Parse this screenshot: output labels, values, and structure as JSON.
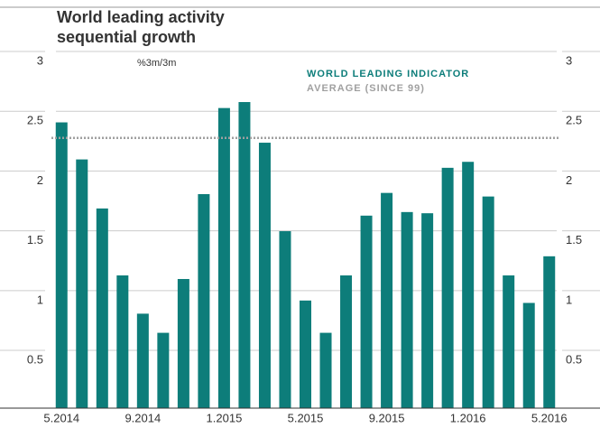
{
  "chart_data": {
    "type": "bar",
    "title_lines": [
      "World leading activity",
      "sequential growth"
    ],
    "unit": "%3m/3m",
    "categories": [
      "5.2014",
      null,
      null,
      null,
      "9.2014",
      null,
      null,
      null,
      "1.2015",
      null,
      null,
      null,
      "5.2015",
      null,
      null,
      null,
      "9.2015",
      null,
      null,
      null,
      "1.2016",
      null,
      null,
      null,
      "5.2016"
    ],
    "series": [
      {
        "name": "WORLD LEADING INDICATOR",
        "color": "#0d7d7a",
        "values": [
          2.49,
          2.18,
          1.77,
          1.21,
          0.89,
          0.73,
          1.18,
          1.89,
          2.61,
          2.66,
          2.32,
          1.58,
          1.0,
          0.73,
          1.21,
          1.71,
          1.9,
          1.74,
          1.73,
          2.11,
          2.16,
          1.87,
          1.21,
          0.98,
          1.37
        ]
      }
    ],
    "average": {
      "name": "AVERAGE (SINCE 99)",
      "value": 2.36,
      "color": "#a0a0a0"
    },
    "ylim": [
      0.1,
      3.0
    ],
    "yticks": [
      0.5,
      1.0,
      1.5,
      2.0,
      2.5,
      3.0
    ],
    "grid": true
  }
}
